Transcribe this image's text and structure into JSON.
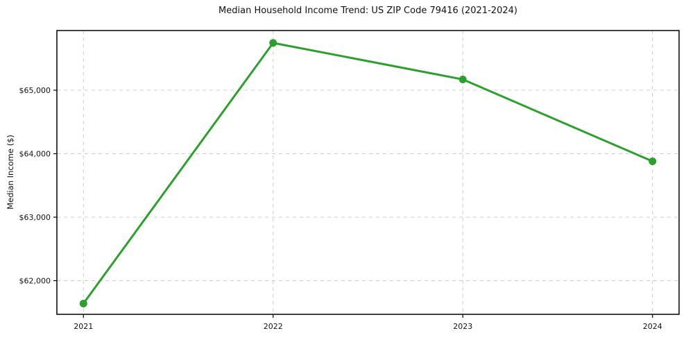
{
  "chart_data": {
    "type": "line",
    "title": "Median Household Income Trend: US ZIP Code 79416 (2021-2024)",
    "xlabel": "",
    "ylabel": "Median Income ($)",
    "x": [
      2021,
      2022,
      2023,
      2024
    ],
    "categories": [
      "2021",
      "2022",
      "2023",
      "2024"
    ],
    "series": [
      {
        "name": "Median Household Income",
        "values": [
          61640,
          65745,
          65170,
          63880
        ]
      }
    ],
    "xticks": {
      "values": [
        2021,
        2022,
        2023,
        2024
      ],
      "labels": [
        "2021",
        "2022",
        "2023",
        "2024"
      ]
    },
    "yticks": {
      "values": [
        62000,
        63000,
        64000,
        65000
      ],
      "labels": [
        "$62,000",
        "$63,000",
        "$64,000",
        "$65,000"
      ]
    },
    "xlim": [
      2020.86,
      2024.14
    ],
    "ylim": [
      61470,
      65940
    ],
    "grid": true,
    "legend": "none",
    "line_color": "#2ca02c",
    "marker_color": "#2ca02c",
    "grid_color": "#cccccc",
    "background": "#ffffff",
    "marker": "circle"
  }
}
